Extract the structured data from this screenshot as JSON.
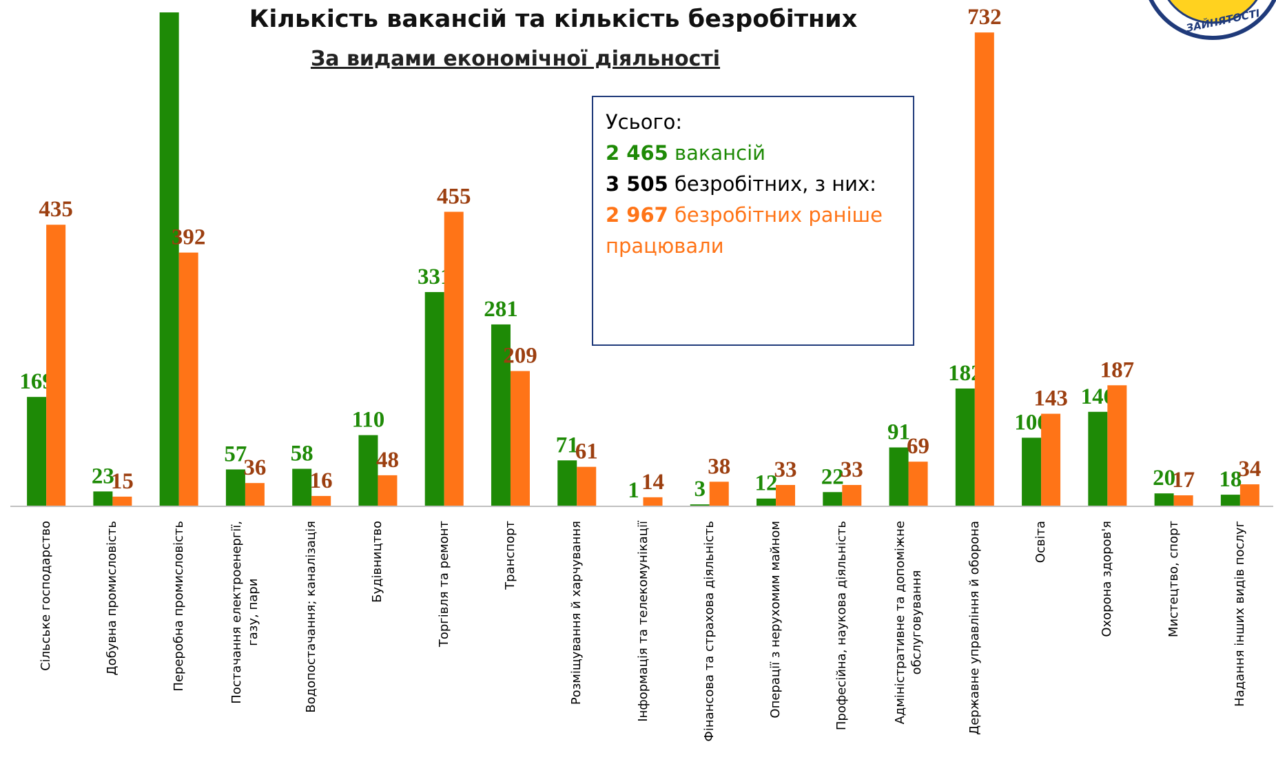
{
  "chart_data": {
    "type": "bar",
    "title": "Кількість вакансій та кількість безробітних",
    "subtitle": "За видами економічної діяльності",
    "categories": [
      "Сільське господарство",
      "Добувна промисловість",
      "Переробна промисловість",
      "Постачання електроенергії,\nгазу, пари",
      "Водопостачання; каналізація",
      "Будівництво",
      "Торгівля та ремонт",
      "Транспорт",
      "Розміщування й харчування",
      "Інформація та телекомунікації",
      "Фінансова та страхова діяльність",
      "Операції з нерухомим майном",
      "Професійна, наукова діяльність",
      "Адміністративне та допоміжне\nобслуговування",
      "Державне управління й оборона",
      "Освіта",
      "Охорона здоров'я",
      "Мистецтво, спорт",
      "Надання інших видів послуг"
    ],
    "series": [
      {
        "name": "вакансій",
        "color": "#1e8a06",
        "label_color": "#1e8a06",
        "values": [
          169,
          23,
          763,
          57,
          58,
          110,
          331,
          281,
          71,
          1,
          3,
          12,
          22,
          91,
          182,
          106,
          146,
          20,
          18
        ]
      },
      {
        "name": "безробітних раніше працювали",
        "color": "#ff7417",
        "label_color": "#9c3f10",
        "values": [
          435,
          15,
          392,
          36,
          16,
          48,
          455,
          209,
          61,
          14,
          38,
          33,
          33,
          69,
          732,
          143,
          187,
          17,
          34
        ]
      }
    ],
    "ylim": [
      0,
      763
    ]
  },
  "info": {
    "title": "Усього:",
    "lines": [
      {
        "number": "2 465",
        "text": "вакансій",
        "color": "#1e8a06"
      },
      {
        "number": "3 505",
        "text": "безробітних, з них:",
        "color": "#000000"
      },
      {
        "number": "2 967",
        "text": "безробітних раніше працювали",
        "color": "#ff7417"
      }
    ]
  },
  "logo_text": "ЗАЙНЯТОСТІ"
}
